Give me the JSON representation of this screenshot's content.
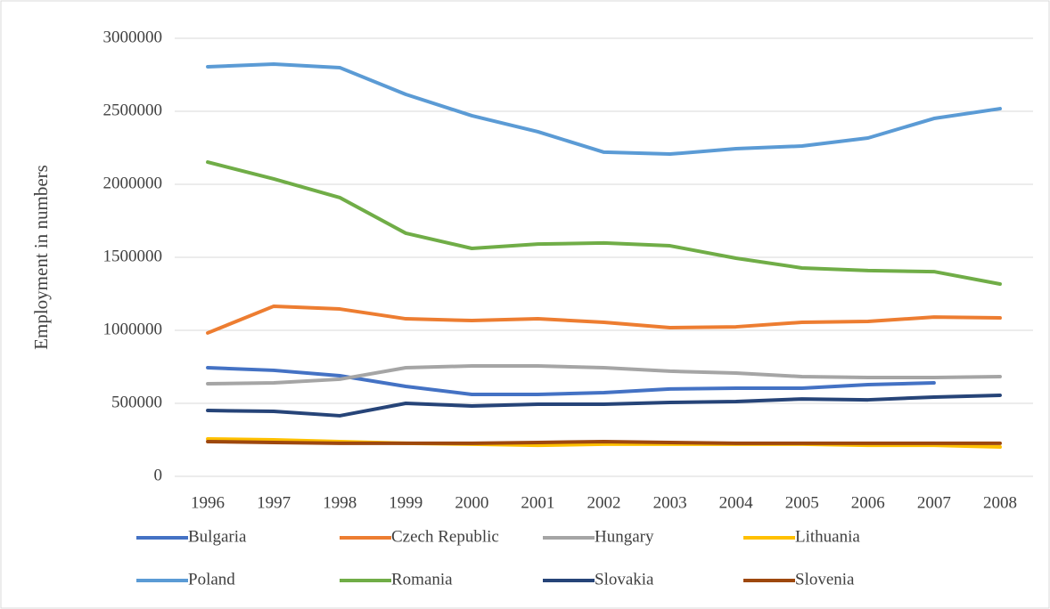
{
  "chart_data": {
    "type": "line",
    "y_label": "Employment in numbers",
    "categories": [
      "1996",
      "1997",
      "1998",
      "1999",
      "2000",
      "2001",
      "2002",
      "2003",
      "2004",
      "2005",
      "2006",
      "2007",
      "2008"
    ],
    "series": [
      {
        "name": "Bulgaria",
        "color": "#4472c4",
        "values": [
          744000,
          726000,
          689000,
          616000,
          561000,
          561000,
          573000,
          598000,
          604000,
          604000,
          628000,
          640000,
          null
        ]
      },
      {
        "name": "Czech Republic",
        "color": "#ed7d31",
        "values": [
          982000,
          1165000,
          1146000,
          1079000,
          1067000,
          1079000,
          1055000,
          1018000,
          1024000,
          1055000,
          1061000,
          1091000,
          1085000
        ]
      },
      {
        "name": "Hungary",
        "color": "#a5a5a5",
        "values": [
          634000,
          640000,
          665000,
          744000,
          756000,
          756000,
          744000,
          720000,
          707000,
          683000,
          677000,
          677000,
          683000
        ]
      },
      {
        "name": "Lithuania",
        "color": "#ffc000",
        "values": [
          256000,
          250000,
          238000,
          226000,
          220000,
          213000,
          220000,
          220000,
          220000,
          220000,
          213000,
          213000,
          201000
        ]
      },
      {
        "name": "Poland",
        "color": "#5b9bd5",
        "values": [
          2805000,
          2823000,
          2799000,
          2616000,
          2470000,
          2360000,
          2220000,
          2207000,
          2244000,
          2262000,
          2317000,
          2451000,
          2518000
        ]
      },
      {
        "name": "Romania",
        "color": "#70ad47",
        "values": [
          2152000,
          2037000,
          1909000,
          1665000,
          1561000,
          1591000,
          1598000,
          1579000,
          1494000,
          1427000,
          1409000,
          1402000,
          1317000
        ]
      },
      {
        "name": "Slovakia",
        "color": "#264478",
        "values": [
          451000,
          445000,
          415000,
          500000,
          482000,
          494000,
          494000,
          506000,
          512000,
          530000,
          524000,
          543000,
          555000
        ]
      },
      {
        "name": "Slovenia",
        "color": "#9e480e",
        "values": [
          238000,
          232000,
          226000,
          226000,
          226000,
          232000,
          238000,
          232000,
          226000,
          226000,
          226000,
          226000,
          226000
        ]
      }
    ],
    "ylim": [
      0,
      3000000
    ],
    "yticks": [
      0,
      500000,
      1000000,
      1500000,
      2000000,
      2500000,
      3000000
    ],
    "grid": true
  }
}
